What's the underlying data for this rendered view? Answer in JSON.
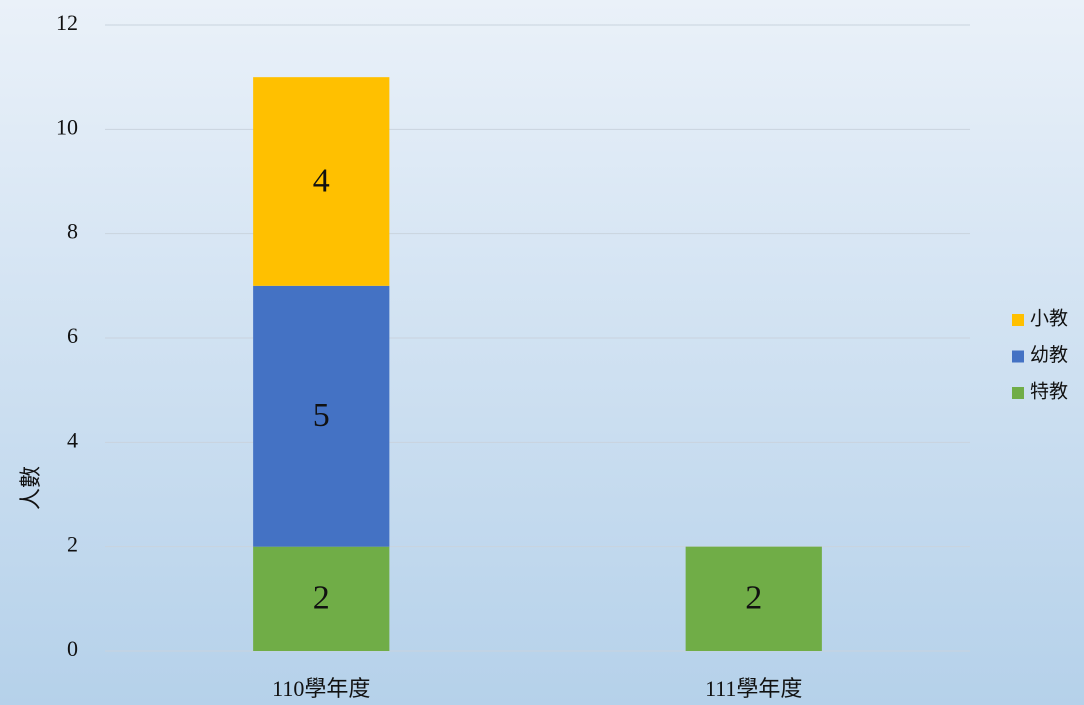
{
  "chart_data": {
    "type": "bar",
    "stacked": true,
    "y_label": "人數",
    "categories": [
      "110學年度",
      "111學年度"
    ],
    "series": [
      {
        "name": "特教",
        "color": "#70ad47",
        "values": [
          2,
          2
        ]
      },
      {
        "name": "幼教",
        "color": "#4472c4",
        "values": [
          5,
          null
        ]
      },
      {
        "name": "小教",
        "color": "#ffc000",
        "values": [
          4,
          null
        ]
      }
    ],
    "ylim": [
      0,
      12
    ],
    "yticks": [
      0,
      2,
      4,
      6,
      8,
      10,
      12
    ],
    "grid": true,
    "legend": "right"
  }
}
